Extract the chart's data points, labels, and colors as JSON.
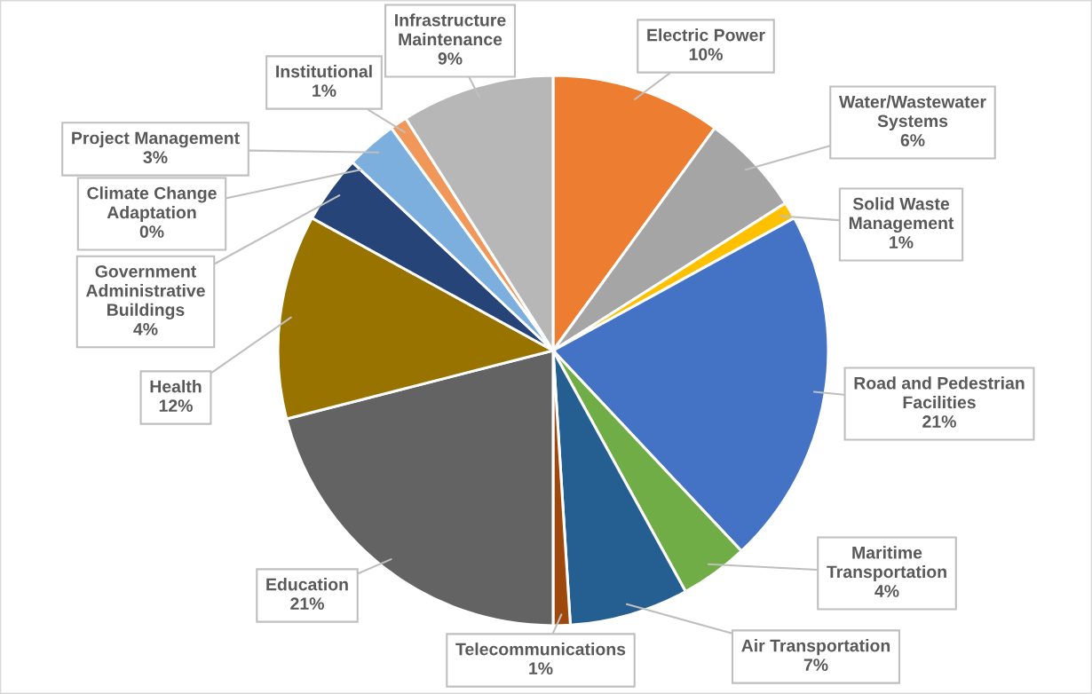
{
  "chart_data": {
    "type": "pie",
    "categories": [
      "Electric Power",
      "Water/Wastewater Systems",
      "Solid Waste Management",
      "Road and Pedestrian Facilities",
      "Maritime Transportation",
      "Air Transportation",
      "Telecommunications",
      "Education",
      "Health",
      "Government Administrative Buildings",
      "Climate Change Adaptation",
      "Project Management",
      "Institutional",
      "Infrastructure Maintenance"
    ],
    "values": [
      10,
      6,
      1,
      21,
      4,
      7,
      1,
      21,
      12,
      4,
      0,
      3,
      1,
      9
    ],
    "colors": [
      "#ed7d31",
      "#a5a5a5",
      "#ffc000",
      "#4472c4",
      "#70ad47",
      "#255e91",
      "#9e480e",
      "#636363",
      "#997300",
      "#264478",
      "#43682b",
      "#7cafdd",
      "#f1975a",
      "#b7b7b7"
    ],
    "value_labels": [
      "10%",
      "6%",
      "1%",
      "21%",
      "4%",
      "7%",
      "1%",
      "21%",
      "12%",
      "4%",
      "0%",
      "3%",
      "1%",
      "9%"
    ]
  }
}
